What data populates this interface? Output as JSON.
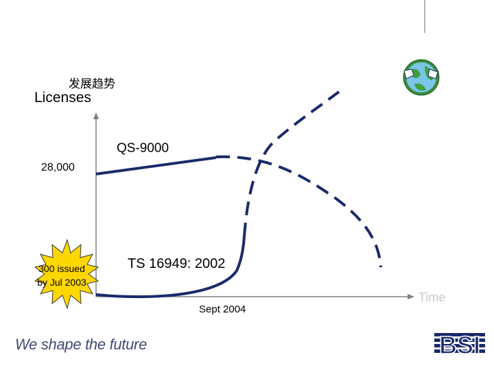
{
  "header": {
    "chinese_title": "发展趋势"
  },
  "callout": {
    "line1": "300 issued",
    "line2": "by Jul 2003"
  },
  "footer": {
    "slogan": "We shape the future",
    "logo_text": "BSI",
    "badge_icon": "globe-badge-icon"
  },
  "colors": {
    "series_line": "#1a2a6a",
    "axis": "#7f7f7f",
    "burst_fill": "#ffd700",
    "x_label": "#c7c7c7",
    "slogan": "#3f4a75",
    "logo": "#1a2a6a"
  },
  "chart_data": {
    "type": "line",
    "ylabel": "Licenses",
    "xlabel": "Time",
    "y_ticks": [
      "28,000"
    ],
    "x_ticks": [
      "Sept 2004"
    ],
    "grid": false,
    "series": [
      {
        "name": "QS-9000",
        "style": "solid-then-dashed"
      },
      {
        "name": "TS 16949: 2002",
        "style": "solid-then-dashed"
      }
    ]
  }
}
